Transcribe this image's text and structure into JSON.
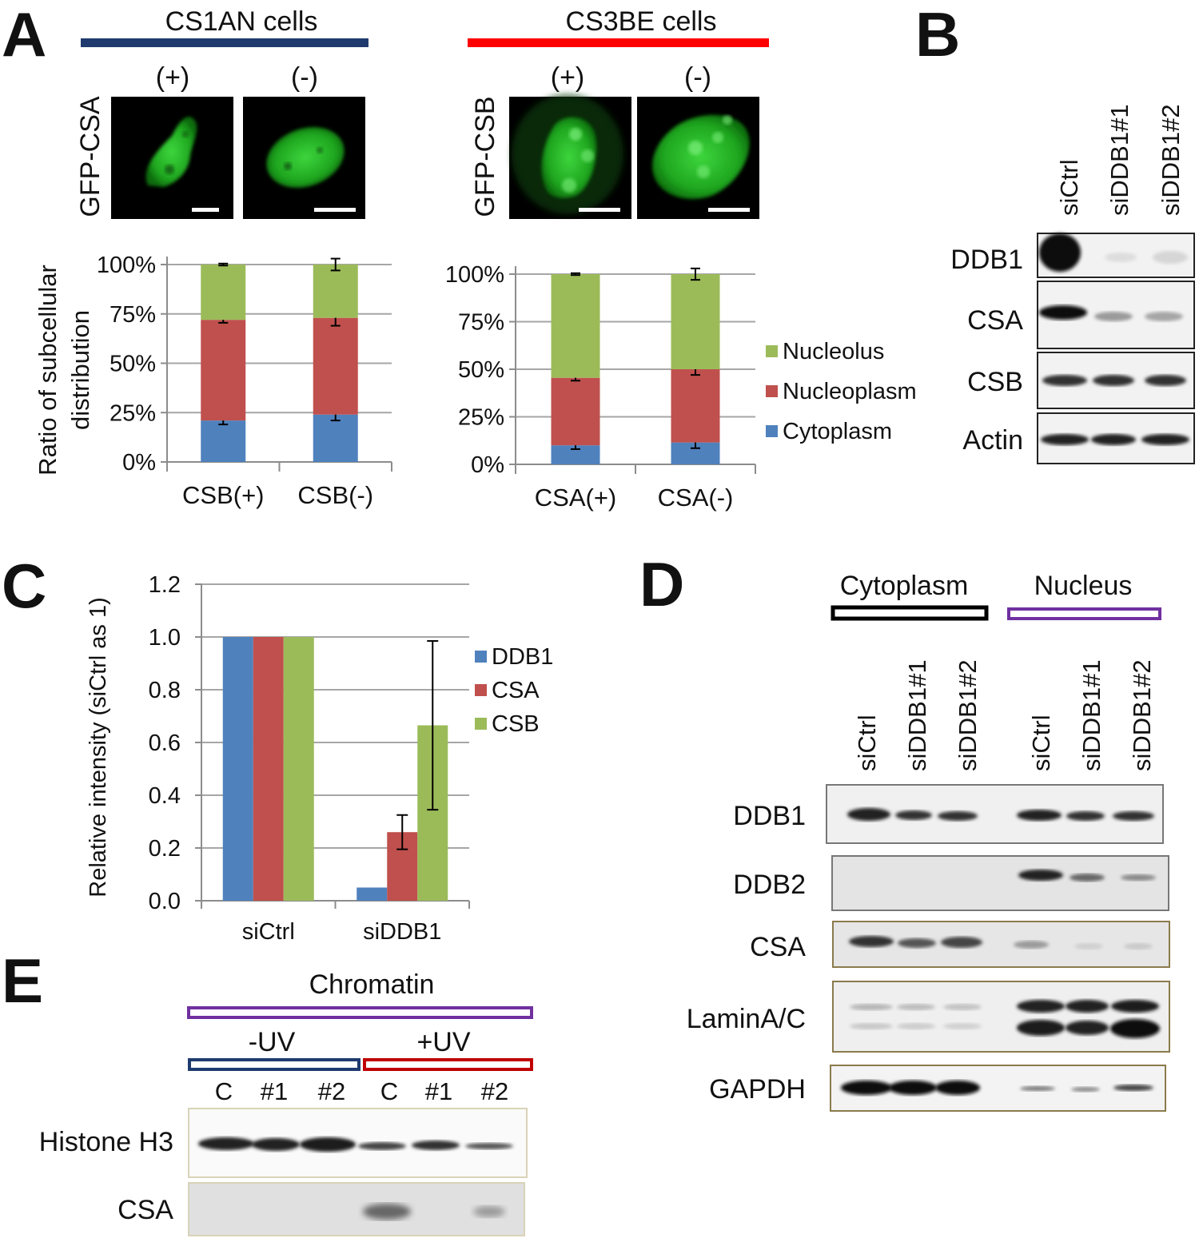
{
  "panel_labels": {
    "a": "A",
    "b": "B",
    "c": "C",
    "d": "D",
    "e": "E"
  },
  "colors": {
    "green": "#9bbb59",
    "red": "#c0504d",
    "blue": "#4f81bd",
    "navy": "#1f3a6e",
    "bright_red": "#ff0000",
    "purple": "#7030a0",
    "dark_red": "#c00000",
    "olive_frame": "#8b7a4c",
    "grid": "#a6a6a6"
  },
  "panel_a": {
    "cs1an_title": "CS1AN cells",
    "cs3be_title": "CS3BE cells",
    "cs1an_plus": "(+)",
    "cs1an_minus": "(-)",
    "cs3be_plus": "(+)",
    "cs3be_minus": "(-)",
    "gfp_csa_label": "GFP-CSA",
    "gfp_csb_label": "GFP-CSB",
    "ylabel_line1": "Ratio of subcellular",
    "ylabel_line2": "distribution"
  },
  "panel_b": {
    "lanes": [
      "siCtrl",
      "siDDB1#1",
      "siDDB1#2"
    ],
    "rows": [
      "DDB1",
      "CSA",
      "CSB",
      "Actin"
    ]
  },
  "panel_d": {
    "group_cytoplasm": "Cytoplasm",
    "group_nucleus": "Nucleus",
    "lanes": [
      "siCtrl",
      "siDDB1#1",
      "siDDB1#2",
      "siCtrl",
      "siDDB1#1",
      "siDDB1#2"
    ],
    "rows": [
      "DDB1",
      "DDB2",
      "CSA",
      "LaminA/C",
      "GAPDH"
    ]
  },
  "panel_e": {
    "group_title": "Chromatin",
    "minus_uv": "-UV",
    "plus_uv": "+UV",
    "lanes": [
      "C",
      "#1",
      "#2",
      "C",
      "#1",
      "#2"
    ],
    "rows": [
      "Histone H3",
      "CSA"
    ]
  },
  "chart_data": [
    {
      "id": "A-left",
      "type": "bar",
      "stacked": true,
      "categories": [
        "CSB(+)",
        "CSB(-)"
      ],
      "series": [
        {
          "name": "Cytoplasm",
          "values": [
            21,
            24
          ],
          "err": [
            2,
            3
          ],
          "color": "#4f81bd"
        },
        {
          "name": "Nucleoplasm",
          "values": [
            51,
            49
          ],
          "err": [
            1.5,
            4
          ],
          "color": "#c0504d"
        },
        {
          "name": "Nucleolus",
          "values": [
            28,
            27
          ],
          "err": [
            0.5,
            3
          ],
          "color": "#9bbb59"
        }
      ],
      "yticks": [
        "0%",
        "25%",
        "50%",
        "75%",
        "100%"
      ],
      "ylim": [
        0,
        100
      ],
      "ylabel": "Ratio of subcellular distribution",
      "grid": true
    },
    {
      "id": "A-right",
      "type": "bar",
      "stacked": true,
      "categories": [
        "CSA(+)",
        "CSA(-)"
      ],
      "series": [
        {
          "name": "Cytoplasm",
          "values": [
            10,
            11.5
          ],
          "err": [
            2,
            3
          ],
          "color": "#4f81bd"
        },
        {
          "name": "Nucleoplasm",
          "values": [
            35.5,
            38.5
          ],
          "err": [
            1.5,
            3
          ],
          "color": "#c0504d"
        },
        {
          "name": "Nucleolus",
          "values": [
            54.5,
            50
          ],
          "err": [
            0.5,
            3
          ],
          "color": "#9bbb59"
        }
      ],
      "yticks": [
        "0%",
        "25%",
        "50%",
        "75%",
        "100%"
      ],
      "ylim": [
        0,
        100
      ],
      "grid": true,
      "legend": [
        "Nucleolus",
        "Nucleoplasm",
        "Cytoplasm"
      ],
      "legend_position": "right"
    },
    {
      "id": "C",
      "type": "bar",
      "stacked": false,
      "categories": [
        "siCtrl",
        "siDDB1"
      ],
      "series": [
        {
          "name": "DDB1",
          "values": [
            1.0,
            0.05
          ],
          "err": [
            0,
            0
          ],
          "color": "#4f81bd"
        },
        {
          "name": "CSA",
          "values": [
            1.0,
            0.26
          ],
          "err": [
            0,
            0.065
          ],
          "color": "#c0504d"
        },
        {
          "name": "CSB",
          "values": [
            1.0,
            0.665
          ],
          "err": [
            0,
            0.32
          ],
          "color": "#9bbb59"
        }
      ],
      "yticks": [
        "0.0",
        "0.2",
        "0.4",
        "0.6",
        "0.8",
        "1.0",
        "1.2"
      ],
      "ylim": [
        0,
        1.2
      ],
      "ylabel": "Relative intensity (siCtrl as 1)",
      "grid": true,
      "legend_position": "right"
    }
  ]
}
